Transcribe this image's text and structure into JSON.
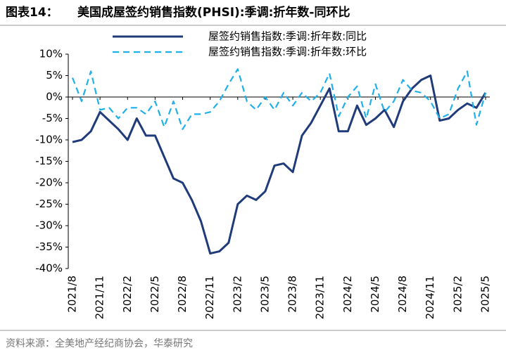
{
  "chart_data": {
    "type": "line",
    "label": "图表14：",
    "title": "美国成屋签约销售指数(PHSI):季调:折年数-同环比",
    "source": "资料来源：全美地产经纪商协会，华泰研究",
    "categories": [
      "2021/8",
      null,
      null,
      "2021/11",
      null,
      null,
      "2022/2",
      null,
      null,
      "2022/5",
      null,
      null,
      "2022/8",
      null,
      null,
      "2022/11",
      null,
      null,
      "2023/2",
      null,
      null,
      "2023/5",
      null,
      null,
      "2023/8",
      null,
      null,
      "2023/11",
      null,
      null,
      "2024/2",
      null,
      null,
      "2024/5",
      null,
      null,
      "2024/8",
      null,
      null,
      "2024/11",
      null,
      null,
      "2025/2",
      null,
      null,
      "2025/5"
    ],
    "series": [
      {
        "name": "屋签约销售指数:季调:折年数:同比",
        "color": "#1f3b7a",
        "dash": false,
        "values": [
          -10.5,
          -10,
          -8,
          -3.5,
          -5.5,
          -7.5,
          -10,
          -5,
          -9,
          -9,
          -14,
          -19,
          -20,
          -24,
          -29,
          -36.5,
          -36,
          -34,
          -25,
          -23,
          -24,
          -22,
          -16,
          -15.5,
          -17.5,
          -9,
          -6,
          -2,
          2,
          -8,
          -8,
          -2,
          -6.5,
          -5,
          -3,
          -7,
          -1,
          2,
          4,
          5,
          -5.5,
          -5,
          -3,
          -1.5,
          -2.5,
          1
        ]
      },
      {
        "name": "屋签约销售指数:季调:折年数:环比",
        "color": "#1fb0ea",
        "dash": true,
        "values": [
          4.5,
          -1,
          6,
          -3,
          -2.5,
          -5,
          -2.5,
          -2.5,
          -4,
          -1,
          -7,
          -1,
          -7.5,
          -4,
          -4,
          -3.5,
          -1,
          3,
          6.5,
          -1,
          -3,
          0,
          -3,
          1,
          -2,
          1,
          -1,
          1,
          5.5,
          -4.5,
          0,
          2.5,
          -5,
          3,
          -3.5,
          -1,
          4,
          1.5,
          1,
          -1,
          -5,
          -4,
          2,
          6,
          -6.5,
          1
        ]
      }
    ],
    "ylim": [
      -40,
      10
    ],
    "yticks": [
      {
        "value": 10,
        "label": "10%"
      },
      {
        "value": 5,
        "label": "5%"
      },
      {
        "value": 0,
        "label": "0%"
      },
      {
        "value": -5,
        "label": "-5%"
      },
      {
        "value": -10,
        "label": "-10%"
      },
      {
        "value": -15,
        "label": "-15%"
      },
      {
        "value": -20,
        "label": "-20%"
      },
      {
        "value": -25,
        "label": "-25%"
      },
      {
        "value": -30,
        "label": "-30%"
      },
      {
        "value": -35,
        "label": "-35%"
      },
      {
        "value": -40,
        "label": "-40%"
      }
    ],
    "grid": false
  }
}
